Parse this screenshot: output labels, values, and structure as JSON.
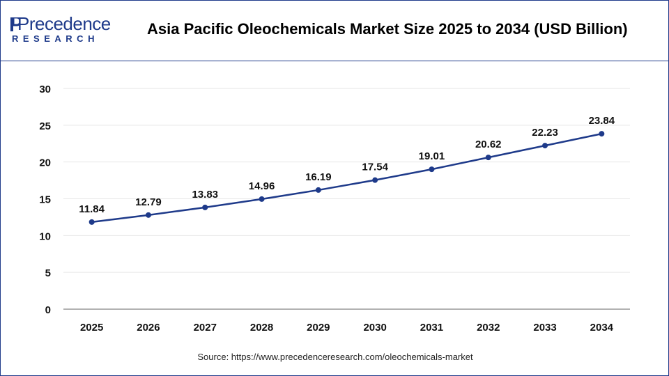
{
  "logo": {
    "top": "recedence",
    "initial": "P",
    "bottom": "RESEARCH"
  },
  "title": "Asia Pacific Oleochemicals Market Size 2025 to 2034 (USD Billion)",
  "source": "Source: https://www.precedenceresearch.com/oleochemicals-market",
  "colors": {
    "line": "#1e3a8a",
    "border": "#1e3a8a",
    "grid": "#e6e6e6"
  },
  "chart_data": {
    "type": "line",
    "title": "Asia Pacific Oleochemicals Market Size 2025 to 2034 (USD Billion)",
    "categories": [
      "2025",
      "2026",
      "2027",
      "2028",
      "2029",
      "2030",
      "2031",
      "2032",
      "2033",
      "2034"
    ],
    "values": [
      11.84,
      12.79,
      13.83,
      14.96,
      16.19,
      17.54,
      19.01,
      20.62,
      22.23,
      23.84
    ],
    "data_labels": [
      "11.84",
      "12.79",
      "13.83",
      "14.96",
      "16.19",
      "17.54",
      "19.01",
      "20.62",
      "22.23",
      "23.84"
    ],
    "ylim": [
      0,
      30
    ],
    "yticks": [
      0,
      5,
      10,
      15,
      20,
      25,
      30
    ],
    "xlabel": "",
    "ylabel": "",
    "grid": true,
    "legend": "none"
  }
}
